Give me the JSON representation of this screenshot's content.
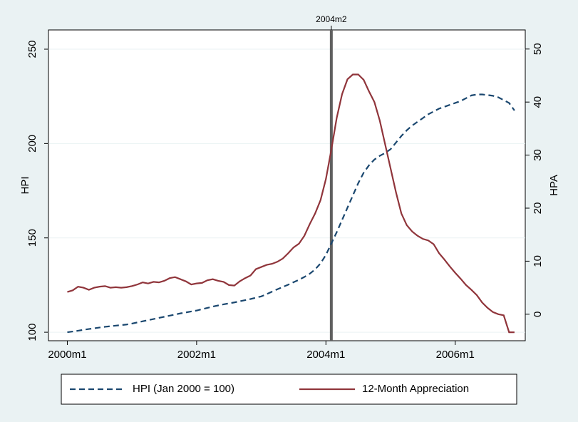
{
  "chart_data": {
    "type": "line",
    "x": [
      480,
      481,
      482,
      483,
      484,
      485,
      486,
      487,
      488,
      489,
      490,
      491,
      492,
      493,
      494,
      495,
      496,
      497,
      498,
      499,
      500,
      501,
      502,
      503,
      504,
      505,
      506,
      507,
      508,
      509,
      510,
      511,
      512,
      513,
      514,
      515,
      516,
      517,
      518,
      519,
      520,
      521,
      522,
      523,
      524,
      525,
      526,
      527,
      528,
      529,
      530,
      531,
      532,
      533,
      534,
      535,
      536,
      537,
      538,
      539,
      540,
      541,
      542,
      543,
      544,
      545,
      546,
      547,
      548,
      549,
      550,
      551,
      552,
      553,
      554,
      555,
      556,
      557,
      558,
      559,
      560,
      561,
      562,
      563
    ],
    "series": [
      {
        "name": "HPI (Jan 2000 = 100)",
        "color": "#1a476f",
        "dashed": true,
        "axis": "y",
        "values": [
          100,
          100.4,
          100.8,
          101.3,
          101.7,
          102.1,
          102.5,
          102.9,
          103.2,
          103.5,
          103.8,
          104.1,
          104.6,
          105.2,
          105.8,
          106.4,
          107,
          107.6,
          108.2,
          108.8,
          109.4,
          110,
          110.5,
          111,
          111.5,
          112.2,
          112.9,
          113.6,
          114.2,
          114.8,
          115.3,
          115.8,
          116.4,
          117,
          117.6,
          118.3,
          119,
          120.2,
          121.5,
          122.8,
          124,
          125.2,
          126.5,
          127.8,
          129.3,
          131,
          133.3,
          136.5,
          141,
          147,
          153,
          159.5,
          166,
          172.5,
          179,
          184.5,
          188.5,
          191.5,
          193.5,
          195,
          197,
          200.5,
          204,
          207,
          209.5,
          211.5,
          213.5,
          215.5,
          217,
          218.5,
          219.5,
          220.5,
          221.5,
          222.5,
          224,
          225.5,
          226,
          226,
          225.7,
          225.3,
          224.5,
          223,
          221.5,
          217.5
        ]
      },
      {
        "name": "12-Month Appreciation",
        "color": "#90353b",
        "dashed": false,
        "axis": "y2",
        "values": [
          4.2,
          4.5,
          5.2,
          5.0,
          4.6,
          5.0,
          5.2,
          5.3,
          5.0,
          5.1,
          5.0,
          5.1,
          5.3,
          5.6,
          6.0,
          5.8,
          6.1,
          6.0,
          6.3,
          6.8,
          7.0,
          6.6,
          6.2,
          5.6,
          5.8,
          5.9,
          6.4,
          6.6,
          6.3,
          6.1,
          5.5,
          5.4,
          6.2,
          6.8,
          7.3,
          8.5,
          8.9,
          9.3,
          9.5,
          9.9,
          10.5,
          11.5,
          12.6,
          13.3,
          14.8,
          17.0,
          19.0,
          21.5,
          25.5,
          31,
          37,
          41.5,
          44.3,
          45.2,
          45.2,
          44.2,
          42,
          40,
          36.5,
          32,
          27.5,
          23,
          19,
          16.8,
          15.6,
          14.8,
          14.2,
          13.9,
          13.2,
          11.5,
          10.3,
          9,
          7.8,
          6.7,
          5.5,
          4.6,
          3.6,
          2.2,
          1.2,
          0.4,
          0,
          -0.2,
          -3.4,
          -3.4
        ]
      }
    ],
    "xlim": [
      476.5,
      565
    ],
    "xticks": [
      {
        "value": 480,
        "label": "2000m1"
      },
      {
        "value": 504,
        "label": "2002m1"
      },
      {
        "value": 528,
        "label": "2004m1"
      },
      {
        "value": 552,
        "label": "2006m1"
      }
    ],
    "ylim": [
      95.5,
      260.2
    ],
    "yticks": [
      100,
      150,
      200,
      250
    ],
    "y_label": "HPI",
    "y2lim": [
      -5,
      53.6
    ],
    "y2ticks": [
      0,
      10,
      20,
      30,
      40,
      50
    ],
    "y2_label": "HPA",
    "vline": {
      "value": 529,
      "label": "2004m2"
    },
    "grid": true
  }
}
